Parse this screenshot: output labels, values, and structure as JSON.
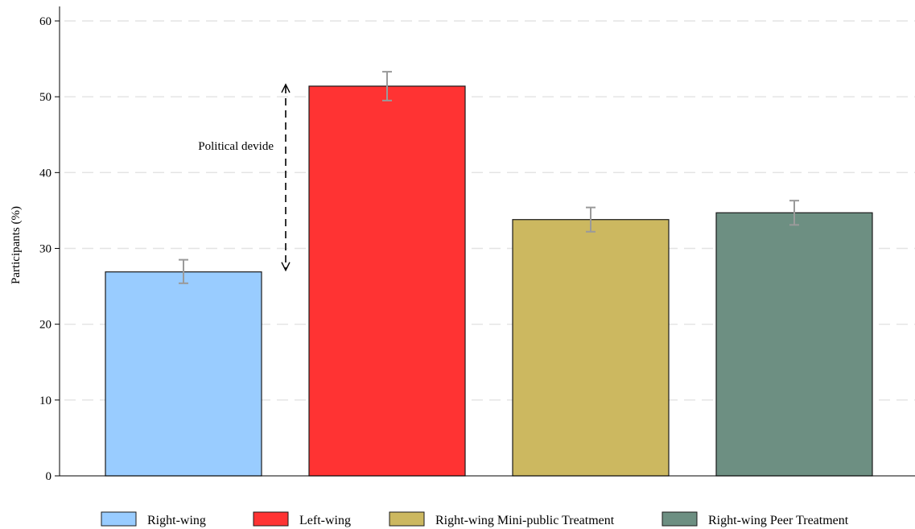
{
  "chart_data": {
    "type": "bar",
    "title": "",
    "xlabel": "",
    "ylabel": "Participants (%)",
    "ylim": [
      0,
      62
    ],
    "yticks": [
      0,
      10,
      20,
      30,
      40,
      50,
      60
    ],
    "grid": "horizontal dashed",
    "legend_position": "bottom",
    "categories": [
      "Right-wing",
      "Left-wing",
      "Right-wing Mini-public Treatment",
      "Right-wing Peer Treatment"
    ],
    "values": [
      26.9,
      51.4,
      33.8,
      34.7
    ],
    "error_low": [
      25.4,
      49.5,
      32.2,
      33.1
    ],
    "error_high": [
      28.5,
      53.3,
      35.4,
      36.3
    ],
    "colors": [
      "#99ccff",
      "#ff3333",
      "#ccb860",
      "#6d8f82"
    ],
    "annotation": {
      "text": "Political devide",
      "from_value": 26.9,
      "to_value": 51.4
    }
  }
}
